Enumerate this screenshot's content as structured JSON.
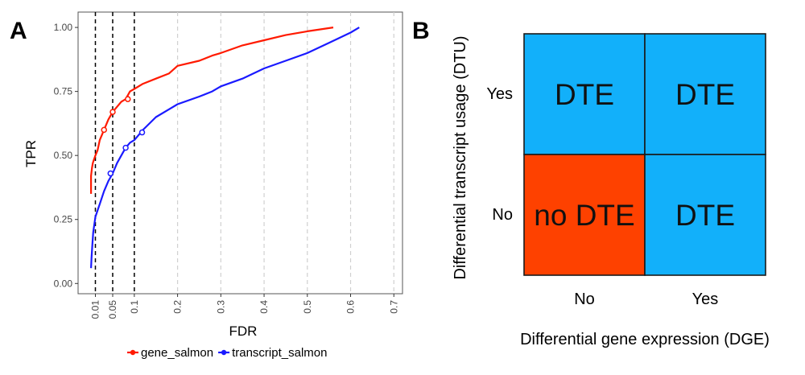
{
  "panel_a": {
    "letter": "A",
    "chart_data": {
      "type": "line",
      "xlabel": "FDR",
      "ylabel": "TPR",
      "xlim": [
        -0.03,
        0.72
      ],
      "ylim": [
        -0.04,
        1.06
      ],
      "x_ticks": [
        {
          "value": 0.01,
          "label": "0.01"
        },
        {
          "value": 0.05,
          "label": "0.05"
        },
        {
          "value": 0.1,
          "label": "0.1"
        },
        {
          "value": 0.2,
          "label": "0.2"
        },
        {
          "value": 0.3,
          "label": "0.3"
        },
        {
          "value": 0.4,
          "label": "0.4"
        },
        {
          "value": 0.5,
          "label": "0.5"
        },
        {
          "value": 0.6,
          "label": "0.6"
        },
        {
          "value": 0.7,
          "label": "0.7"
        }
      ],
      "y_ticks": [
        {
          "value": 0.0,
          "label": "0.00"
        },
        {
          "value": 0.25,
          "label": "0.25"
        },
        {
          "value": 0.5,
          "label": "0.50"
        },
        {
          "value": 0.75,
          "label": "0.75"
        },
        {
          "value": 1.0,
          "label": "1.00"
        }
      ],
      "fdr_thresholds": [
        0.01,
        0.05,
        0.1
      ],
      "grid": "vertical dashed",
      "legend_position": "bottom",
      "series": [
        {
          "name": "gene_salmon",
          "color": "#ff1a00",
          "x": [
            0.0,
            0.0,
            0.002,
            0.004,
            0.006,
            0.01,
            0.015,
            0.02,
            0.025,
            0.03,
            0.04,
            0.05,
            0.06,
            0.07,
            0.08,
            0.09,
            0.1,
            0.12,
            0.15,
            0.18,
            0.2,
            0.25,
            0.28,
            0.3,
            0.35,
            0.4,
            0.45,
            0.5,
            0.56
          ],
          "y": [
            0.35,
            0.42,
            0.45,
            0.47,
            0.48,
            0.5,
            0.52,
            0.56,
            0.58,
            0.6,
            0.64,
            0.67,
            0.69,
            0.71,
            0.72,
            0.75,
            0.76,
            0.78,
            0.8,
            0.82,
            0.85,
            0.87,
            0.89,
            0.9,
            0.93,
            0.95,
            0.97,
            0.985,
            1.0
          ],
          "threshold_points": [
            [
              0.03,
              0.6
            ],
            [
              0.05,
              0.67
            ],
            [
              0.085,
              0.72
            ]
          ]
        },
        {
          "name": "transcript_salmon",
          "color": "#1a1aff",
          "x": [
            0.0,
            0.001,
            0.003,
            0.005,
            0.01,
            0.02,
            0.03,
            0.04,
            0.05,
            0.06,
            0.07,
            0.08,
            0.09,
            0.1,
            0.12,
            0.15,
            0.18,
            0.2,
            0.25,
            0.28,
            0.3,
            0.35,
            0.4,
            0.45,
            0.5,
            0.55,
            0.6,
            0.62
          ],
          "y": [
            0.06,
            0.1,
            0.15,
            0.2,
            0.26,
            0.31,
            0.36,
            0.4,
            0.43,
            0.47,
            0.5,
            0.53,
            0.55,
            0.56,
            0.6,
            0.65,
            0.68,
            0.7,
            0.73,
            0.75,
            0.77,
            0.8,
            0.84,
            0.87,
            0.9,
            0.94,
            0.98,
            1.0
          ],
          "threshold_points": [
            [
              0.045,
              0.43
            ],
            [
              0.08,
              0.53
            ],
            [
              0.118,
              0.59
            ]
          ]
        }
      ]
    }
  },
  "panel_b": {
    "letter": "B",
    "ylabel": "Differential transcript usage (DTU)",
    "xlabel": "Differential gene expression (DGE)",
    "row_labels": [
      "Yes",
      "No"
    ],
    "col_labels": [
      "No",
      "Yes"
    ],
    "cells": [
      {
        "row": 0,
        "col": 0,
        "label": "DTE",
        "color": "#12b0fa"
      },
      {
        "row": 0,
        "col": 1,
        "label": "DTE",
        "color": "#12b0fa"
      },
      {
        "row": 1,
        "col": 0,
        "label": "no DTE",
        "color": "#fe4100"
      },
      {
        "row": 1,
        "col": 1,
        "label": "DTE",
        "color": "#12b0fa"
      }
    ]
  }
}
